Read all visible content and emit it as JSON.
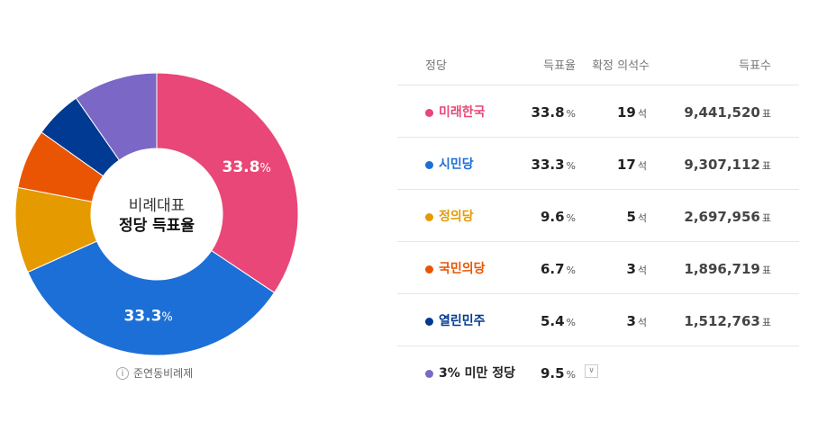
{
  "chart_data": {
    "type": "pie",
    "center_title_line1": "비례대표",
    "center_title_line2": "정당 득표율",
    "categories": [
      "미래한국",
      "시민당",
      "3% 미만 정당",
      "정의당",
      "국민의당",
      "열린민주"
    ],
    "values": [
      33.8,
      33.3,
      9.5,
      9.6,
      6.7,
      5.4
    ],
    "colors": [
      "#e84777",
      "#1c6fd6",
      "#7b68c6",
      "#e59a00",
      "#ea5504",
      "#003a92"
    ],
    "slice_order_clockwise_from_top": [
      "미래한국",
      "시민당",
      "정의당",
      "국민의당",
      "열린민주",
      "3% 미만 정당"
    ],
    "data_labels": [
      {
        "party": "미래한국",
        "value": "33.8",
        "unit": "%"
      },
      {
        "party": "시민당",
        "value": "33.3",
        "unit": "%"
      }
    ]
  },
  "footnote": {
    "icon": "info-icon",
    "text": "준연동비례제"
  },
  "table": {
    "headers": {
      "party": "정당",
      "rate": "득표율",
      "seats": "확정 의석수",
      "votes": "득표수"
    },
    "rows": [
      {
        "party": "미래한국",
        "color": "#e84777",
        "rate": "33.8",
        "rate_unit": "%",
        "seats": "19",
        "seats_unit": "석",
        "votes": "9,441,520",
        "votes_unit": "표"
      },
      {
        "party": "시민당",
        "color": "#1c6fd6",
        "rate": "33.3",
        "rate_unit": "%",
        "seats": "17",
        "seats_unit": "석",
        "votes": "9,307,112",
        "votes_unit": "표"
      },
      {
        "party": "정의당",
        "color": "#e59a00",
        "rate": "9.6",
        "rate_unit": "%",
        "seats": "5",
        "seats_unit": "석",
        "votes": "2,697,956",
        "votes_unit": "표"
      },
      {
        "party": "국민의당",
        "color": "#ea5504",
        "rate": "6.7",
        "rate_unit": "%",
        "seats": "3",
        "seats_unit": "석",
        "votes": "1,896,719",
        "votes_unit": "표"
      },
      {
        "party": "열린민주",
        "color": "#003a92",
        "rate": "5.4",
        "rate_unit": "%",
        "seats": "3",
        "seats_unit": "석",
        "votes": "1,512,763",
        "votes_unit": "표"
      }
    ],
    "others": {
      "party": "3% 미만 정당",
      "color": "#7b68c6",
      "rate": "9.5",
      "rate_unit": "%",
      "expand_icon": "chevron-down-icon"
    }
  }
}
